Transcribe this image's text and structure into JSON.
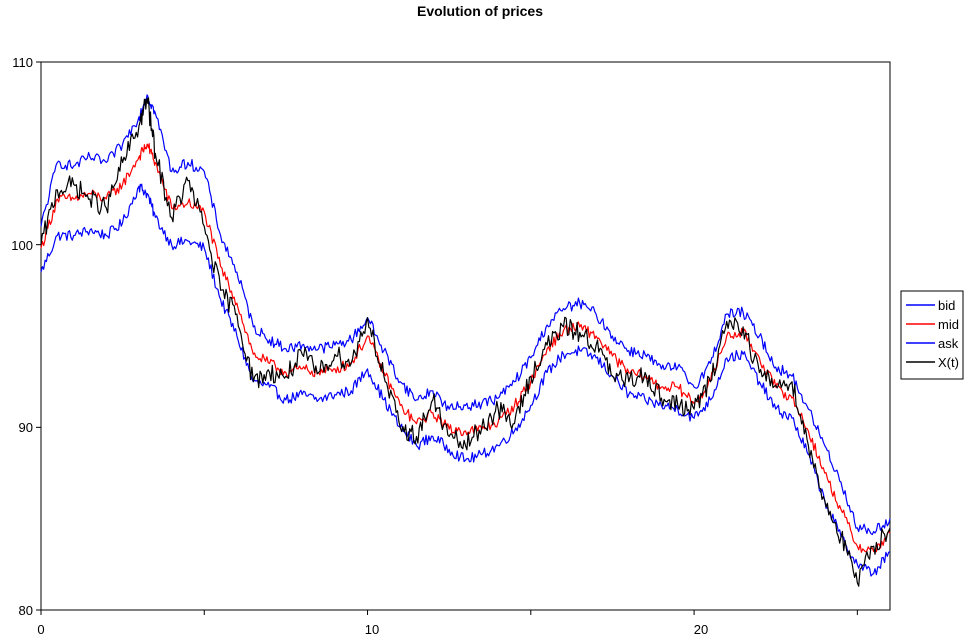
{
  "chart_data": {
    "type": "line",
    "title": "Evolution of prices",
    "xlabel": "",
    "ylabel": "",
    "xlim": [
      0,
      26
    ],
    "ylim": [
      80,
      110
    ],
    "x_ticks": [
      "0",
      "10",
      "20"
    ],
    "y_ticks": [
      "80",
      "90",
      "100",
      "110"
    ],
    "grid": false,
    "legend_position": "right",
    "x": [
      0,
      0.5,
      1,
      1.5,
      2,
      2.5,
      3,
      3.25,
      3.5,
      4,
      4.5,
      5,
      5.5,
      6,
      6.5,
      7,
      7.5,
      8,
      8.5,
      9,
      9.5,
      10,
      10.5,
      11,
      11.5,
      12,
      12.5,
      13,
      13.5,
      14,
      14.5,
      15,
      15.5,
      16,
      16.5,
      17,
      17.5,
      18,
      18.5,
      19,
      19.5,
      20,
      20.5,
      21,
      21.5,
      22,
      22.5,
      23,
      23.5,
      24,
      24.5,
      25,
      25.5,
      26
    ],
    "series": [
      {
        "name": "bid",
        "color": "#0000ff",
        "values": [
          98.5,
          100.5,
          100.5,
          100.8,
          100.5,
          101.2,
          103.2,
          102.8,
          101.5,
          100,
          100.2,
          99.8,
          97,
          95,
          92.5,
          92.2,
          91.5,
          91.8,
          91.5,
          91.8,
          92,
          93.2,
          91.5,
          90,
          89,
          89.5,
          88.8,
          88.2,
          88.5,
          89,
          89.8,
          91.2,
          93,
          94,
          94.2,
          93.8,
          92.8,
          91.8,
          91.5,
          91.2,
          91,
          90.5,
          91.5,
          93.8,
          94,
          92.5,
          91,
          90.5,
          88.5,
          86,
          84,
          82.5,
          82,
          83.2
        ]
      },
      {
        "name": "mid",
        "color": "#ff0000",
        "values": [
          99.8,
          102.5,
          102.5,
          102.8,
          102.5,
          103.3,
          104.8,
          105.5,
          104.5,
          102,
          102.3,
          101.8,
          98.8,
          96.8,
          94,
          93.5,
          93,
          93.2,
          93,
          93.2,
          93.5,
          95,
          93,
          91.2,
          90.2,
          90.8,
          89.9,
          89.8,
          89.9,
          90.3,
          91.2,
          92.5,
          94.3,
          95.3,
          95.5,
          95,
          93.9,
          93,
          92.8,
          92.2,
          92.2,
          91.3,
          92.5,
          95,
          95.2,
          93.8,
          92.2,
          91.6,
          89.8,
          87.5,
          85.5,
          83.5,
          83.2,
          84.2
        ]
      },
      {
        "name": "ask",
        "color": "#0000ff",
        "values": [
          101,
          104.5,
          104.3,
          104.8,
          104.5,
          105.5,
          107,
          108.2,
          107.2,
          104,
          104.5,
          104,
          100.5,
          98.5,
          95.5,
          94.8,
          94.3,
          94.5,
          94.3,
          94.5,
          94.8,
          96,
          94.2,
          92.5,
          91.5,
          92,
          91,
          91.2,
          91.3,
          91.6,
          92.5,
          93.8,
          95.6,
          96.5,
          96.8,
          96.2,
          95,
          94.2,
          94,
          93.2,
          93.3,
          92.2,
          93.5,
          96.2,
          96.3,
          95,
          93.3,
          92.8,
          91,
          89,
          87,
          84.5,
          84.3,
          85
        ]
      },
      {
        "name": "X(t)",
        "color": "#000000",
        "values": [
          100,
          103,
          103.3,
          102.5,
          102,
          104.5,
          106.5,
          108,
          105,
          101.5,
          103.5,
          101,
          97.5,
          96.2,
          92.5,
          93,
          92.8,
          94,
          93,
          94,
          93.5,
          96,
          92.8,
          90,
          89.5,
          91.5,
          89.5,
          89,
          90,
          91,
          90.2,
          92.8,
          94.5,
          95.5,
          95.2,
          94.5,
          92.8,
          92.5,
          93,
          91.6,
          91.2,
          91,
          92.5,
          95.8,
          95.5,
          93,
          92.3,
          92.5,
          89,
          86,
          84,
          81.5,
          83.5,
          84.5
        ]
      }
    ]
  }
}
